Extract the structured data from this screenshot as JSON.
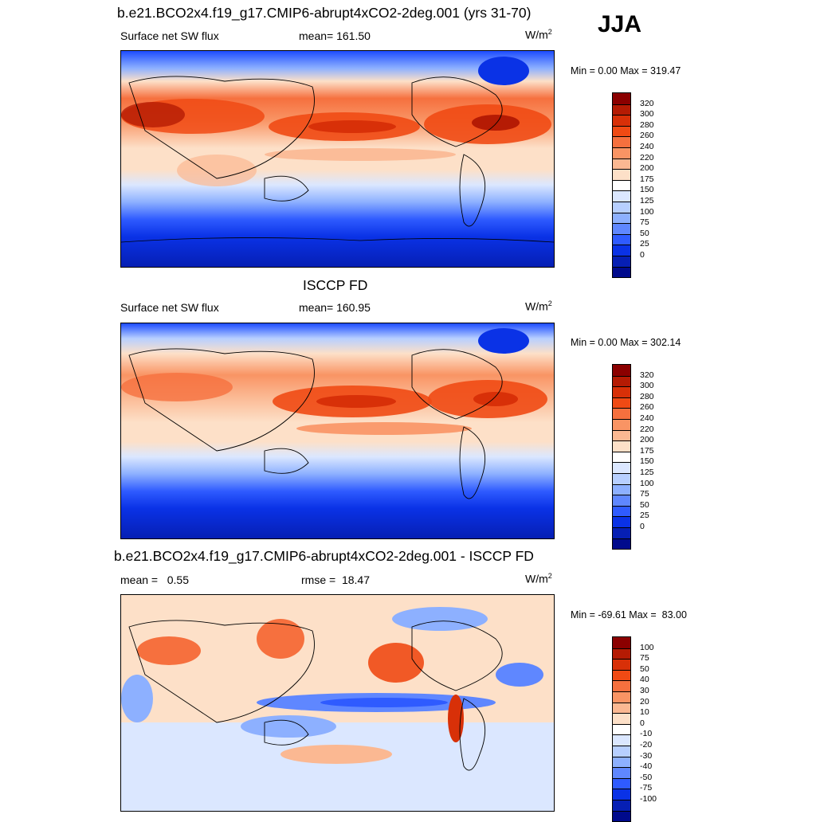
{
  "season": "JJA",
  "panels": [
    {
      "title": "b.e21.BCO2x4.f19_g17.CMIP6-abrupt4xCO2-2deg.001 (yrs 31-70)",
      "left_label": "Surface net SW flux",
      "center_label": "mean= 161.50",
      "units_base": "W/m",
      "units_exp": "2",
      "minmax": "Min =   0.00 Max = 319.47",
      "colorbar": {
        "labels": [
          "320",
          "300",
          "280",
          "260",
          "240",
          "220",
          "200",
          "175",
          "150",
          "125",
          "100",
          "75",
          "50",
          "25",
          "0"
        ],
        "colors": [
          "#8b0000",
          "#b51b04",
          "#d83008",
          "#f04a14",
          "#f6703e",
          "#f99464",
          "#fbb892",
          "#fde0c8",
          "#ffffff",
          "#dbe7ff",
          "#b7cfff",
          "#8db0ff",
          "#5f87ff",
          "#2f5bff",
          "#0a32e6",
          "#061fb4",
          "#000a8c"
        ]
      }
    },
    {
      "title": "ISCCP FD",
      "left_label": "Surface net SW flux",
      "center_label": "mean= 160.95",
      "units_base": "W/m",
      "units_exp": "2",
      "minmax": "Min =   0.00 Max = 302.14",
      "colorbar": {
        "labels": [
          "320",
          "300",
          "280",
          "260",
          "240",
          "220",
          "200",
          "175",
          "150",
          "125",
          "100",
          "75",
          "50",
          "25",
          "0"
        ],
        "colors": [
          "#8b0000",
          "#b51b04",
          "#d83008",
          "#f04a14",
          "#f6703e",
          "#f99464",
          "#fbb892",
          "#fde0c8",
          "#ffffff",
          "#dbe7ff",
          "#b7cfff",
          "#8db0ff",
          "#5f87ff",
          "#2f5bff",
          "#0a32e6",
          "#061fb4",
          "#000a8c"
        ]
      }
    },
    {
      "title": "b.e21.BCO2x4.f19_g17.CMIP6-abrupt4xCO2-2deg.001 - ISCCP FD",
      "left_label": "mean =   0.55",
      "center_label": "rmse =  18.47",
      "units_base": "W/m",
      "units_exp": "2",
      "minmax": "Min = -69.61 Max =  83.00",
      "colorbar": {
        "labels": [
          "100",
          "75",
          "50",
          "40",
          "30",
          "20",
          "10",
          "0",
          "-10",
          "-20",
          "-30",
          "-40",
          "-50",
          "-75",
          "-100"
        ],
        "colors": [
          "#8b0000",
          "#b51b04",
          "#d83008",
          "#f04a14",
          "#f6703e",
          "#f99464",
          "#fbb892",
          "#fde0c8",
          "#ffffff",
          "#dbe7ff",
          "#b7cfff",
          "#8db0ff",
          "#5f87ff",
          "#2f5bff",
          "#0a32e6",
          "#061fb4",
          "#000a8c"
        ]
      }
    }
  ]
}
